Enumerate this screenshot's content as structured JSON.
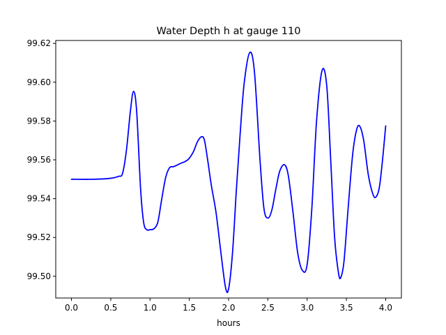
{
  "chart_data": {
    "type": "line",
    "title": "Water Depth h at gauge 110",
    "xlabel": "hours",
    "ylabel": "",
    "xlim": [
      -0.2,
      4.2
    ],
    "ylim": [
      99.4888,
      99.6215
    ],
    "xticks": [
      0.0,
      0.5,
      1.0,
      1.5,
      2.0,
      2.5,
      3.0,
      3.5,
      4.0
    ],
    "xtick_labels": [
      "0.0",
      "0.5",
      "1.0",
      "1.5",
      "2.0",
      "2.5",
      "3.0",
      "3.5",
      "4.0"
    ],
    "yticks": [
      99.5,
      99.52,
      99.54,
      99.56,
      99.58,
      99.6,
      99.62
    ],
    "ytick_labels": [
      "99.50",
      "99.52",
      "99.54",
      "99.56",
      "99.58",
      "99.60",
      "99.62"
    ],
    "grid": false,
    "series": [
      {
        "color": "#0000ff",
        "x": [
          0.0,
          0.3,
          0.5,
          0.6,
          0.65,
          0.7,
          0.75,
          0.79,
          0.83,
          0.88,
          0.92,
          0.96,
          1.0,
          1.05,
          1.1,
          1.15,
          1.2,
          1.25,
          1.3,
          1.38,
          1.48,
          1.55,
          1.6,
          1.65,
          1.69,
          1.73,
          1.78,
          1.84,
          1.9,
          1.96,
          2.0,
          2.05,
          2.1,
          2.15,
          2.2,
          2.27,
          2.33,
          2.4,
          2.45,
          2.5,
          2.55,
          2.6,
          2.65,
          2.71,
          2.76,
          2.82,
          2.88,
          2.94,
          3.0,
          3.06,
          3.12,
          3.19,
          3.25,
          3.3,
          3.35,
          3.4,
          3.43,
          3.47,
          3.52,
          3.58,
          3.63,
          3.67,
          3.72,
          3.78,
          3.84,
          3.88,
          3.92,
          3.96,
          4.0
        ],
        "values": [
          99.55,
          99.55,
          99.5505,
          99.5515,
          99.553,
          99.565,
          99.585,
          99.5953,
          99.585,
          99.545,
          99.5275,
          99.524,
          99.524,
          99.5245,
          99.528,
          99.54,
          99.551,
          99.556,
          99.5565,
          99.558,
          99.56,
          99.564,
          99.569,
          99.5718,
          99.5705,
          99.561,
          99.547,
          99.533,
          99.513,
          99.4945,
          99.4935,
          99.512,
          99.545,
          99.575,
          99.6,
          99.6153,
          99.605,
          99.56,
          99.535,
          99.53,
          99.534,
          99.5445,
          99.554,
          99.5575,
          99.552,
          99.533,
          99.512,
          99.503,
          99.506,
          99.535,
          99.58,
          99.606,
          99.598,
          99.56,
          99.52,
          99.5015,
          99.4995,
          99.508,
          99.534,
          99.563,
          99.5755,
          99.5773,
          99.57,
          99.552,
          99.542,
          99.541,
          99.546,
          99.56,
          99.5775
        ]
      }
    ]
  }
}
